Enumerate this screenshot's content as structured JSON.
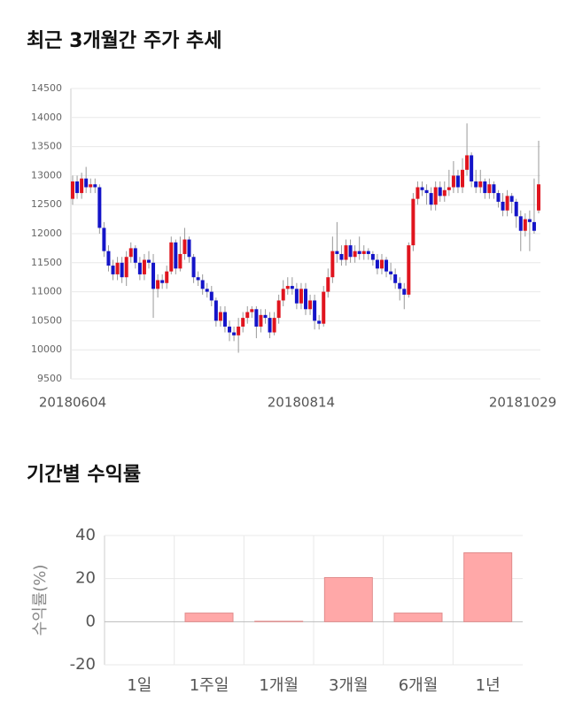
{
  "chart_data": [
    {
      "type": "candlestick",
      "title": "최근 3개월간 주가 추세",
      "categories": [
        "20180604",
        null,
        null,
        null,
        null,
        null,
        null,
        null,
        null,
        null,
        null,
        null,
        null,
        null,
        null,
        null,
        null,
        null,
        null,
        null,
        null,
        null,
        null,
        null,
        null,
        null,
        null,
        null,
        null,
        null,
        null,
        null,
        null,
        null,
        null,
        null,
        null,
        null,
        null,
        null,
        null,
        null,
        null,
        null,
        null,
        null,
        null,
        null,
        null,
        null,
        null,
        "20180814",
        null,
        null,
        null,
        null,
        null,
        null,
        null,
        null,
        null,
        null,
        null,
        null,
        null,
        null,
        null,
        null,
        null,
        null,
        null,
        null,
        null,
        null,
        null,
        null,
        null,
        null,
        null,
        null,
        null,
        null,
        null,
        null,
        null,
        null,
        null,
        null,
        null,
        null,
        null,
        null,
        null,
        null,
        null,
        null,
        null,
        null,
        null,
        null,
        null,
        null,
        null,
        null,
        "20181029"
      ],
      "open": [
        12600,
        12900,
        12700,
        12950,
        12800,
        12850,
        12800,
        12100,
        11700,
        11450,
        11300,
        11500,
        11250,
        11600,
        11750,
        11500,
        11300,
        11550,
        11500,
        11050,
        11200,
        11150,
        11350,
        11850,
        11400,
        11650,
        11900,
        11600,
        11250,
        11200,
        11050,
        11000,
        10850,
        10500,
        10650,
        10400,
        10300,
        10250,
        10400,
        10550,
        10650,
        10700,
        10400,
        10600,
        10550,
        10300,
        10550,
        10850,
        11050,
        11100,
        11050,
        10800,
        11050,
        10700,
        10850,
        10500,
        10450,
        11000,
        11250,
        11700,
        11650,
        11550,
        11800,
        11600,
        11700,
        11650,
        11700,
        11650,
        11550,
        11400,
        11550,
        11350,
        11300,
        11150,
        11050,
        10950,
        11800,
        12600,
        12800,
        12750,
        12700,
        12500,
        12800,
        12650,
        12750,
        12800,
        13000,
        12800,
        13100,
        13350,
        12900,
        12800,
        12900,
        12700,
        12850,
        12700,
        12550,
        12400,
        12650,
        12550,
        12300,
        12050,
        12250,
        12200,
        12400
      ],
      "high": [
        13000,
        13000,
        13050,
        13150,
        12950,
        12950,
        12850,
        12200,
        11800,
        11550,
        11600,
        11600,
        11700,
        11850,
        11800,
        11600,
        11650,
        11700,
        11650,
        11300,
        11300,
        11450,
        11950,
        11900,
        11950,
        12100,
        11950,
        11650,
        11350,
        11300,
        11150,
        11100,
        10900,
        10750,
        10750,
        10500,
        10400,
        10550,
        10650,
        10750,
        10750,
        10750,
        10700,
        10700,
        10650,
        10650,
        10950,
        11200,
        11250,
        11250,
        11150,
        11150,
        11150,
        10950,
        10950,
        10600,
        11100,
        11400,
        11950,
        12200,
        11800,
        11900,
        11900,
        11800,
        11950,
        11800,
        11750,
        11700,
        11650,
        11650,
        11600,
        11500,
        11400,
        11250,
        11150,
        11850,
        12700,
        12900,
        12900,
        12850,
        12800,
        12900,
        12900,
        12900,
        13100,
        13250,
        13100,
        13300,
        13900,
        13400,
        13100,
        13100,
        12950,
        12950,
        12900,
        12750,
        12700,
        12750,
        12700,
        12600,
        12400,
        12350,
        12400,
        12950,
        13600
      ],
      "low": [
        12500,
        12600,
        12600,
        12700,
        12700,
        12700,
        12000,
        11600,
        11350,
        11200,
        11200,
        11150,
        11100,
        11500,
        11400,
        11200,
        11200,
        11400,
        10550,
        10900,
        11050,
        11050,
        11300,
        11300,
        11350,
        11550,
        11500,
        11150,
        11100,
        10950,
        10900,
        10750,
        10400,
        10400,
        10300,
        10150,
        10150,
        9950,
        10300,
        10450,
        10550,
        10200,
        10300,
        10450,
        10200,
        10250,
        10450,
        10750,
        10950,
        10950,
        10700,
        10700,
        10600,
        10600,
        10350,
        10350,
        10400,
        10900,
        11150,
        11500,
        11450,
        11450,
        11500,
        11500,
        11550,
        11550,
        11550,
        11450,
        11300,
        11300,
        11250,
        11200,
        11050,
        10850,
        10700,
        10900,
        11700,
        12500,
        12650,
        12500,
        12400,
        12400,
        12550,
        12550,
        12650,
        12700,
        12700,
        12700,
        13000,
        12800,
        12700,
        12700,
        12600,
        12600,
        12600,
        12450,
        12300,
        12300,
        12350,
        12100,
        11700,
        11950,
        11700,
        12000,
        12350
      ],
      "close": [
        12900,
        12700,
        12950,
        12800,
        12850,
        12800,
        12100,
        11700,
        11450,
        11300,
        11500,
        11250,
        11600,
        11750,
        11500,
        11300,
        11550,
        11500,
        11050,
        11200,
        11150,
        11350,
        11850,
        11400,
        11650,
        11900,
        11600,
        11250,
        11200,
        11050,
        11000,
        10850,
        10500,
        10650,
        10400,
        10300,
        10250,
        10400,
        10550,
        10650,
        10700,
        10400,
        10600,
        10550,
        10300,
        10550,
        10850,
        11050,
        11100,
        11050,
        10800,
        11050,
        10700,
        10850,
        10500,
        10450,
        11000,
        11250,
        11700,
        11650,
        11550,
        11800,
        11600,
        11700,
        11650,
        11700,
        11650,
        11550,
        11400,
        11550,
        11350,
        11300,
        11150,
        11050,
        10950,
        11800,
        12600,
        12800,
        12750,
        12700,
        12500,
        12800,
        12650,
        12750,
        12800,
        13000,
        12800,
        13100,
        13350,
        12900,
        12800,
        12900,
        12700,
        12850,
        12700,
        12550,
        12400,
        12650,
        12550,
        12300,
        12050,
        12250,
        12200,
        12050,
        12850
      ],
      "up_color": "#e0141e",
      "down_color": "#1414c8",
      "ylim": [
        9500,
        14500
      ],
      "yticks": [
        9500,
        10000,
        10500,
        11000,
        11500,
        12000,
        12500,
        13000,
        13500,
        14000,
        14500
      ],
      "grid": true
    },
    {
      "type": "bar",
      "title": "기간별 수익률",
      "y_label": "수익률(%)",
      "categories": [
        "1일",
        "1주일",
        "1개월",
        "3개월",
        "6개월",
        "1년"
      ],
      "values": [
        0,
        4,
        0.2,
        20.5,
        4,
        32
      ],
      "color": "#ffa8a8",
      "ylim": [
        -20,
        40
      ],
      "yticks": [
        -20,
        0,
        20,
        40
      ],
      "grid": true
    }
  ]
}
